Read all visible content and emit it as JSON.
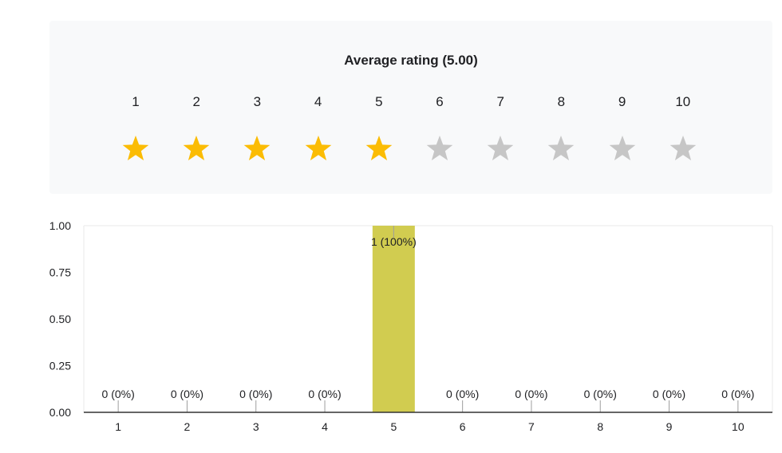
{
  "summary": {
    "title": "Average rating (5.00)",
    "stars": [
      {
        "label": "1",
        "filled": true
      },
      {
        "label": "2",
        "filled": true
      },
      {
        "label": "3",
        "filled": true
      },
      {
        "label": "4",
        "filled": true
      },
      {
        "label": "5",
        "filled": true
      },
      {
        "label": "6",
        "filled": false
      },
      {
        "label": "7",
        "filled": false
      },
      {
        "label": "8",
        "filled": false
      },
      {
        "label": "9",
        "filled": false
      },
      {
        "label": "10",
        "filled": false
      }
    ],
    "colors": {
      "filled": "#fbbc04",
      "empty": "#c6c6c6"
    }
  },
  "chart_data": {
    "type": "bar",
    "categories": [
      "1",
      "2",
      "3",
      "4",
      "5",
      "6",
      "7",
      "8",
      "9",
      "10"
    ],
    "values": [
      0,
      0,
      0,
      0,
      1,
      0,
      0,
      0,
      0,
      0
    ],
    "data_labels": [
      "0 (0%)",
      "0 (0%)",
      "0 (0%)",
      "0 (0%)",
      "1 (100%)",
      "0 (0%)",
      "0 (0%)",
      "0 (0%)",
      "0 (0%)",
      "0 (0%)"
    ],
    "yticks": [
      "0.00",
      "0.25",
      "0.50",
      "0.75",
      "1.00"
    ],
    "ylim": [
      0,
      1
    ],
    "bar_color": "#d1cc50",
    "grid": false
  }
}
